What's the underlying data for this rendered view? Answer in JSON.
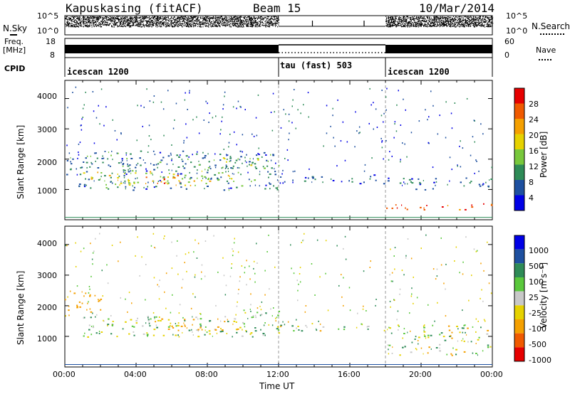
{
  "header": {
    "station": "Kapuskasing (fitACF)",
    "beam": "Beam 15",
    "date": "10/Mar/2014"
  },
  "top_panel": {
    "left_label_top": "N.Sky",
    "left_label_freq_1": "Freq.",
    "left_label_freq_2": "[MHz]",
    "left_label_cpid": "CPID",
    "nsky_ticks": [
      "10^5",
      "10^0"
    ],
    "freq_ticks": [
      "18",
      "8"
    ],
    "right_nsky_ticks": [
      "10^5",
      "10^0"
    ],
    "right_nave_ticks": [
      "60",
      "0"
    ],
    "right_label_nsearch": "N.Search",
    "right_label_nave": "Nave",
    "cpid_segments": [
      {
        "label": "icescan 1200",
        "start_hour": 0,
        "end_hour": 12
      },
      {
        "label": "tau (fast) 503",
        "start_hour": 12,
        "end_hour": 18
      },
      {
        "label": "icescan 1200",
        "start_hour": 18,
        "end_hour": 24
      }
    ]
  },
  "axes": {
    "ylabel": "Slant Range [km]",
    "xlabel": "Time UT",
    "yticks": [
      "1000",
      "2000",
      "3000",
      "4000"
    ],
    "xticks": [
      "00:00",
      "04:00",
      "08:00",
      "12:00",
      "16:00",
      "20:00",
      "00:00"
    ]
  },
  "power_colorbar": {
    "label": "Power [dB]",
    "ticks": [
      "28",
      "24",
      "20",
      "16",
      "12",
      "8",
      "4"
    ],
    "colors": [
      "#e60000",
      "#f05a00",
      "#f5a000",
      "#e6d200",
      "#78c83c",
      "#2e8b57",
      "#1e50a0",
      "#0000e6"
    ]
  },
  "velocity_colorbar": {
    "label": "Velocity [m s⁻¹]",
    "ticks": [
      "1000",
      "500",
      "100",
      "25",
      "-25",
      "-100",
      "-500",
      "-1000"
    ],
    "colors": [
      "#0000e6",
      "#1e50a0",
      "#2e8b57",
      "#5ac83c",
      "#c8c8c8",
      "#e6d200",
      "#f5a000",
      "#f05a00",
      "#e60000"
    ]
  },
  "chart_data": [
    {
      "type": "heatmap",
      "title": "Power",
      "x_unit": "hour UT",
      "y_unit": "km",
      "xlim": [
        0,
        24
      ],
      "ylim": [
        0,
        4600
      ],
      "colorbar_label": "Power [dB]",
      "colorbar_range": [
        0,
        32
      ],
      "regions": [
        {
          "x0": 0,
          "x1": 12,
          "y0": 1000,
          "y1": 2300,
          "level": 8
        },
        {
          "x0": 1,
          "x1": 9.5,
          "y0": 1150,
          "y1": 1650,
          "level": 16
        },
        {
          "x0": 4.5,
          "x1": 6.5,
          "y0": 1150,
          "y1": 1500,
          "level": 24
        },
        {
          "x0": 8,
          "x1": 11,
          "y0": 1500,
          "y1": 2100,
          "level": 12
        },
        {
          "x0": 12,
          "x1": 18,
          "y0": 1200,
          "y1": 1500,
          "level": 6
        },
        {
          "x0": 18,
          "x1": 24,
          "y0": 1000,
          "y1": 1400,
          "level": 6
        },
        {
          "x0": 18,
          "x1": 24,
          "y0": 350,
          "y1": 550,
          "level": 28
        }
      ]
    },
    {
      "type": "heatmap",
      "title": "Velocity",
      "x_unit": "hour UT",
      "y_unit": "km",
      "xlim": [
        0,
        24
      ],
      "ylim": [
        0,
        4600
      ],
      "colorbar_label": "Velocity [m s-1]",
      "colorbar_range": [
        -1000,
        1000
      ],
      "regions": [
        {
          "x0": 0,
          "x1": 2,
          "y0": 1800,
          "y1": 2500,
          "velocity": -300
        },
        {
          "x0": 1,
          "x1": 12,
          "y0": 1000,
          "y1": 1700,
          "velocity": 50
        },
        {
          "x0": 5,
          "x1": 10,
          "y0": 1200,
          "y1": 1600,
          "velocity": -200
        },
        {
          "x0": 10,
          "x1": 12,
          "y0": 1500,
          "y1": 2100,
          "velocity": 0
        },
        {
          "x0": 12,
          "x1": 18,
          "y0": 1200,
          "y1": 1500,
          "velocity": 0
        },
        {
          "x0": 18,
          "x1": 24,
          "y0": 400,
          "y1": 1400,
          "velocity": 0
        }
      ]
    }
  ]
}
